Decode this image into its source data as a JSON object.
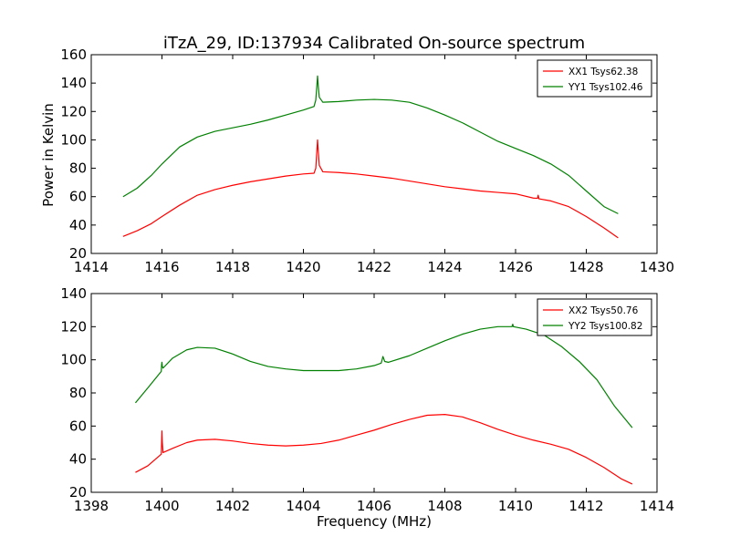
{
  "figure": {
    "title": "iTzA_29, ID:137934 Calibrated On-source spectrum",
    "ylabel": "Power in Kelvin",
    "xlabel": "Frequency (MHz)"
  },
  "chart_data": [
    {
      "type": "line",
      "title": "iTzA_29, ID:137934 Calibrated On-source spectrum",
      "ylabel": "Power in Kelvin",
      "xlim": [
        1414,
        1430
      ],
      "ylim": [
        20,
        160
      ],
      "xticks": [
        1414,
        1416,
        1418,
        1420,
        1422,
        1424,
        1426,
        1428,
        1430
      ],
      "yticks": [
        20,
        40,
        60,
        80,
        100,
        120,
        140,
        160
      ],
      "legend_position": "top-right",
      "grid": false,
      "series": [
        {
          "name": "XX1 Tsys62.38",
          "color": "#ff0000",
          "points": [
            [
              1414.9,
              32
            ],
            [
              1415.3,
              36
            ],
            [
              1415.7,
              41
            ],
            [
              1416.0,
              46
            ],
            [
              1416.5,
              54
            ],
            [
              1417.0,
              61
            ],
            [
              1417.5,
              65
            ],
            [
              1418.0,
              68
            ],
            [
              1418.5,
              70.5
            ],
            [
              1419.0,
              72.5
            ],
            [
              1419.5,
              74.5
            ],
            [
              1420.0,
              76
            ],
            [
              1420.3,
              76.5
            ],
            [
              1420.35,
              80
            ],
            [
              1420.38,
              92
            ],
            [
              1420.4,
              100
            ],
            [
              1420.42,
              92
            ],
            [
              1420.45,
              82
            ],
            [
              1420.55,
              77.5
            ],
            [
              1421.0,
              77
            ],
            [
              1421.5,
              76
            ],
            [
              1422.0,
              74.5
            ],
            [
              1422.5,
              73
            ],
            [
              1423.0,
              71
            ],
            [
              1423.5,
              69
            ],
            [
              1424.0,
              67
            ],
            [
              1424.5,
              65.5
            ],
            [
              1425.0,
              64
            ],
            [
              1425.5,
              63
            ],
            [
              1426.0,
              62
            ],
            [
              1426.5,
              59
            ],
            [
              1426.62,
              58.8
            ],
            [
              1426.64,
              61
            ],
            [
              1426.66,
              58.5
            ],
            [
              1427.0,
              57
            ],
            [
              1427.5,
              53
            ],
            [
              1428.0,
              46
            ],
            [
              1428.5,
              38
            ],
            [
              1428.9,
              31
            ]
          ]
        },
        {
          "name": "YY1 Tsys102.46",
          "color": "#008000",
          "points": [
            [
              1414.9,
              60
            ],
            [
              1415.3,
              66
            ],
            [
              1415.7,
              75
            ],
            [
              1416.0,
              83
            ],
            [
              1416.5,
              95
            ],
            [
              1417.0,
              102
            ],
            [
              1417.5,
              106
            ],
            [
              1418.0,
              108.5
            ],
            [
              1418.5,
              111
            ],
            [
              1419.0,
              114
            ],
            [
              1419.5,
              117.5
            ],
            [
              1420.0,
              121
            ],
            [
              1420.3,
              123.5
            ],
            [
              1420.35,
              128
            ],
            [
              1420.38,
              138
            ],
            [
              1420.4,
              145
            ],
            [
              1420.42,
              138
            ],
            [
              1420.45,
              130
            ],
            [
              1420.55,
              126.5
            ],
            [
              1421.0,
              127
            ],
            [
              1421.5,
              128
            ],
            [
              1422.0,
              128.5
            ],
            [
              1422.5,
              128
            ],
            [
              1423.0,
              126.5
            ],
            [
              1423.5,
              122.5
            ],
            [
              1424.0,
              117.5
            ],
            [
              1424.5,
              112
            ],
            [
              1425.0,
              105.5
            ],
            [
              1425.5,
              99
            ],
            [
              1426.0,
              94
            ],
            [
              1426.5,
              89
            ],
            [
              1427.0,
              83
            ],
            [
              1427.5,
              75
            ],
            [
              1428.0,
              64
            ],
            [
              1428.5,
              53
            ],
            [
              1428.9,
              48
            ]
          ]
        }
      ]
    },
    {
      "type": "line",
      "xlabel": "Frequency (MHz)",
      "xlim": [
        1398,
        1414
      ],
      "ylim": [
        20,
        140
      ],
      "xticks": [
        1398,
        1400,
        1402,
        1404,
        1406,
        1408,
        1410,
        1412,
        1414
      ],
      "yticks": [
        20,
        40,
        60,
        80,
        100,
        120,
        140
      ],
      "legend_position": "top-right",
      "grid": false,
      "series": [
        {
          "name": "XX2 Tsys50.76",
          "color": "#ff0000",
          "points": [
            [
              1399.25,
              32
            ],
            [
              1399.6,
              36
            ],
            [
              1399.98,
              43
            ],
            [
              1399.99,
              50
            ],
            [
              1400.0,
              57
            ],
            [
              1400.01,
              50
            ],
            [
              1400.03,
              44
            ],
            [
              1400.3,
              46.5
            ],
            [
              1400.7,
              50
            ],
            [
              1401.0,
              51.5
            ],
            [
              1401.5,
              52
            ],
            [
              1402.0,
              51
            ],
            [
              1402.5,
              49.5
            ],
            [
              1403.0,
              48.5
            ],
            [
              1403.5,
              48
            ],
            [
              1404.0,
              48.5
            ],
            [
              1404.5,
              49.5
            ],
            [
              1405.0,
              51.5
            ],
            [
              1405.5,
              54.5
            ],
            [
              1406.0,
              57.5
            ],
            [
              1406.5,
              61
            ],
            [
              1407.0,
              64
            ],
            [
              1407.5,
              66.5
            ],
            [
              1408.0,
              67
            ],
            [
              1408.5,
              65.5
            ],
            [
              1409.0,
              62
            ],
            [
              1409.5,
              58
            ],
            [
              1410.0,
              54.5
            ],
            [
              1410.5,
              51.5
            ],
            [
              1411.0,
              49
            ],
            [
              1411.5,
              46
            ],
            [
              1412.0,
              41
            ],
            [
              1412.5,
              35
            ],
            [
              1413.0,
              28
            ],
            [
              1413.3,
              25
            ]
          ]
        },
        {
          "name": "YY2 Tsys100.82",
          "color": "#008000",
          "points": [
            [
              1399.25,
              74
            ],
            [
              1399.6,
              83
            ],
            [
              1399.98,
              93
            ],
            [
              1399.99,
              97
            ],
            [
              1400.0,
              98.5
            ],
            [
              1400.01,
              96
            ],
            [
              1400.03,
              95
            ],
            [
              1400.3,
              101
            ],
            [
              1400.7,
              106
            ],
            [
              1401.0,
              107.5
            ],
            [
              1401.5,
              107
            ],
            [
              1402.0,
              103.5
            ],
            [
              1402.5,
              99
            ],
            [
              1403.0,
              96
            ],
            [
              1403.5,
              94.5
            ],
            [
              1404.0,
              93.5
            ],
            [
              1404.5,
              93.5
            ],
            [
              1405.0,
              93.5
            ],
            [
              1405.5,
              94.5
            ],
            [
              1406.0,
              96.5
            ],
            [
              1406.2,
              98
            ],
            [
              1406.25,
              102
            ],
            [
              1406.3,
              99
            ],
            [
              1406.4,
              98.5
            ],
            [
              1407.0,
              102.5
            ],
            [
              1407.5,
              107
            ],
            [
              1408.0,
              111.5
            ],
            [
              1408.5,
              115.5
            ],
            [
              1409.0,
              118.5
            ],
            [
              1409.5,
              120
            ],
            [
              1409.9,
              120
            ],
            [
              1409.92,
              121.5
            ],
            [
              1409.94,
              120
            ],
            [
              1410.3,
              118.5
            ],
            [
              1410.8,
              115
            ],
            [
              1411.3,
              108
            ],
            [
              1411.8,
              99
            ],
            [
              1412.3,
              88
            ],
            [
              1412.8,
              72
            ],
            [
              1413.3,
              59
            ]
          ]
        }
      ]
    }
  ]
}
